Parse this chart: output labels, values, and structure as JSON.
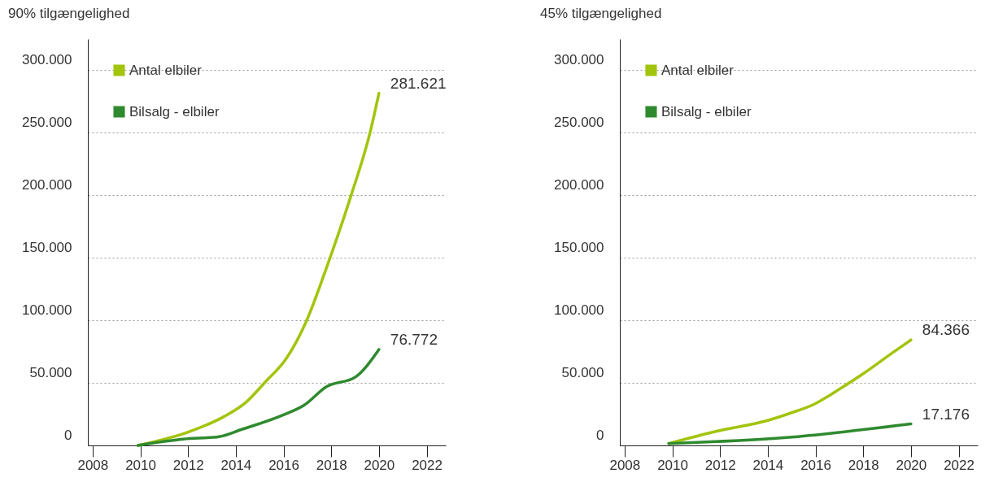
{
  "chart_data": [
    {
      "type": "line",
      "title": "90% tilgængelighed",
      "xlim": [
        2007.8,
        2022.8
      ],
      "ylim": [
        0,
        325000
      ],
      "xticks": [
        2008,
        2010,
        2012,
        2014,
        2016,
        2018,
        2020,
        2022
      ],
      "yticks": [
        {
          "value": 0,
          "label": "0"
        },
        {
          "value": 50000,
          "label": "50.000"
        },
        {
          "value": 100000,
          "label": "100.000"
        },
        {
          "value": 150000,
          "label": "150.000"
        },
        {
          "value": 200000,
          "label": "200.000"
        },
        {
          "value": 250000,
          "label": "250.000"
        },
        {
          "value": 300000,
          "label": "300.000"
        }
      ],
      "grid": "y",
      "legend": "top left",
      "marker": "none",
      "line_style": "solid",
      "series": [
        {
          "name": "Antal elbiler",
          "color": "#a2c40c",
          "x": [
            2009.9,
            2012.05,
            2013.5,
            2014.4,
            2015.25,
            2016.1,
            2016.95,
            2017.8,
            2018.8,
            2019.65,
            2020
          ],
          "values": [
            0,
            11000,
            23000,
            34000,
            51000,
            69000,
            99000,
            142000,
            198000,
            252000,
            281621
          ],
          "value_labels": [
            null,
            null,
            null,
            null,
            null,
            null,
            null,
            null,
            null,
            null,
            "281.621"
          ]
        },
        {
          "name": "Bilsalg - elbiler",
          "color": "#2f8a2f",
          "x": [
            2009.9,
            2011.8,
            2013.3,
            2014.2,
            2016,
            2016.85,
            2017.8,
            2019,
            2020
          ],
          "values": [
            0,
            5000,
            7000,
            12500,
            24500,
            32000,
            47000,
            54500,
            76772
          ],
          "value_labels": [
            null,
            null,
            null,
            null,
            null,
            null,
            null,
            null,
            "76.772"
          ]
        }
      ]
    },
    {
      "type": "line",
      "title": "45% tilgængelighed",
      "xlim": [
        2007.8,
        2022.8
      ],
      "ylim": [
        0,
        325000
      ],
      "xticks": [
        2008,
        2010,
        2012,
        2014,
        2016,
        2018,
        2020,
        2022
      ],
      "yticks": [
        {
          "value": 0,
          "label": "0"
        },
        {
          "value": 50000,
          "label": "50.000"
        },
        {
          "value": 100000,
          "label": "100.000"
        },
        {
          "value": 150000,
          "label": "150.000"
        },
        {
          "value": 200000,
          "label": "200.000"
        },
        {
          "value": 250000,
          "label": "250.000"
        },
        {
          "value": 300000,
          "label": "300.000"
        }
      ],
      "grid": "y",
      "legend": "top left",
      "marker": "none",
      "line_style": "solid",
      "series": [
        {
          "name": "Antal elbiler",
          "color": "#a2c40c",
          "x": [
            2009.85,
            2011.9,
            2014,
            2014.9,
            2015.95,
            2017,
            2018.05,
            2019.15,
            2020
          ],
          "values": [
            1500,
            11500,
            20000,
            25500,
            33000,
            45000,
            58000,
            73000,
            84366
          ],
          "value_labels": [
            null,
            null,
            null,
            null,
            null,
            null,
            null,
            null,
            "84.366"
          ]
        },
        {
          "name": "Bilsalg - elbiler",
          "color": "#2f8a2f",
          "x": [
            2009.85,
            2014.9,
            2020
          ],
          "values": [
            1500,
            6500,
            17176
          ],
          "value_labels": [
            null,
            null,
            "17.176"
          ]
        }
      ]
    }
  ]
}
